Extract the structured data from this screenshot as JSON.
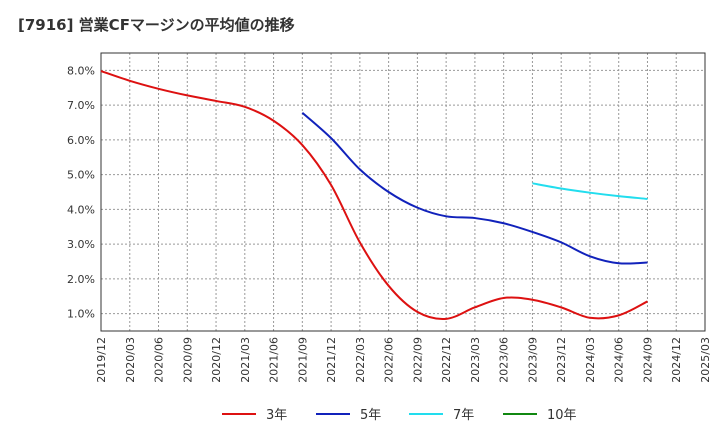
{
  "chart_data": {
    "type": "line",
    "title": "[7916]  営業CFマージンの平均値の推移",
    "xlabel": "",
    "ylabel": "",
    "x": [
      "2019/12",
      "2020/03",
      "2020/06",
      "2020/09",
      "2020/12",
      "2021/03",
      "2021/06",
      "2021/09",
      "2021/12",
      "2022/03",
      "2022/06",
      "2022/09",
      "2022/12",
      "2023/03",
      "2023/06",
      "2023/09",
      "2023/12",
      "2024/03",
      "2024/06",
      "2024/09",
      "2024/12",
      "2025/03"
    ],
    "ylim": [
      0.5,
      8.5
    ],
    "y_ticks": [
      "1.0%",
      "2.0%",
      "3.0%",
      "4.0%",
      "5.0%",
      "6.0%",
      "7.0%",
      "8.0%"
    ],
    "y_tick_values": [
      1,
      2,
      3,
      4,
      5,
      6,
      7,
      8
    ],
    "grid": true,
    "legend_position": "bottom",
    "series": [
      {
        "name": "3年",
        "color": "#dd1111",
        "values": [
          7.98,
          7.7,
          7.47,
          7.28,
          7.12,
          6.95,
          6.55,
          5.85,
          4.7,
          3.05,
          1.8,
          1.05,
          0.85,
          1.18,
          1.45,
          1.4,
          1.18,
          0.88,
          0.95,
          1.35,
          null,
          null
        ]
      },
      {
        "name": "5年",
        "color": "#1122bb",
        "values": [
          null,
          null,
          null,
          null,
          null,
          null,
          null,
          6.78,
          6.05,
          5.15,
          4.5,
          4.05,
          3.8,
          3.75,
          3.6,
          3.35,
          3.05,
          2.65,
          2.45,
          2.47,
          null,
          null
        ]
      },
      {
        "name": "7年",
        "color": "#22ddee",
        "values": [
          null,
          null,
          null,
          null,
          null,
          null,
          null,
          null,
          null,
          null,
          null,
          null,
          null,
          null,
          null,
          4.75,
          4.6,
          4.48,
          4.38,
          4.3,
          null,
          null
        ]
      },
      {
        "name": "10年",
        "color": "#118811",
        "values": [
          null,
          null,
          null,
          null,
          null,
          null,
          null,
          null,
          null,
          null,
          null,
          null,
          null,
          null,
          null,
          null,
          null,
          null,
          null,
          null,
          null,
          null
        ]
      }
    ]
  }
}
